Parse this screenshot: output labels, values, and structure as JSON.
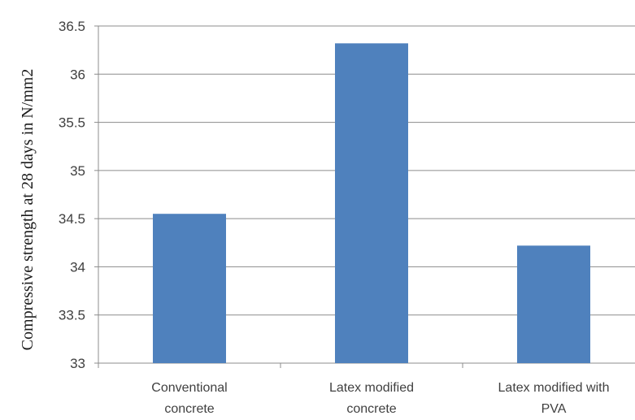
{
  "chart_data": {
    "type": "bar",
    "categories": [
      [
        "Conventional",
        "concrete"
      ],
      [
        "Latex modified",
        "concrete"
      ],
      [
        "Latex modified with",
        "PVA"
      ]
    ],
    "values": [
      34.55,
      36.32,
      34.22
    ],
    "ylabel": "Compressive strength at 28 days in N/mm2",
    "ylim": [
      33,
      36.5
    ],
    "yticks": [
      "33",
      "33.5",
      "34",
      "34.5",
      "35",
      "35.5",
      "36",
      "36.5"
    ],
    "grid": true,
    "bar_color": "#4f81bd",
    "grid_color": "#8c8c8c"
  }
}
